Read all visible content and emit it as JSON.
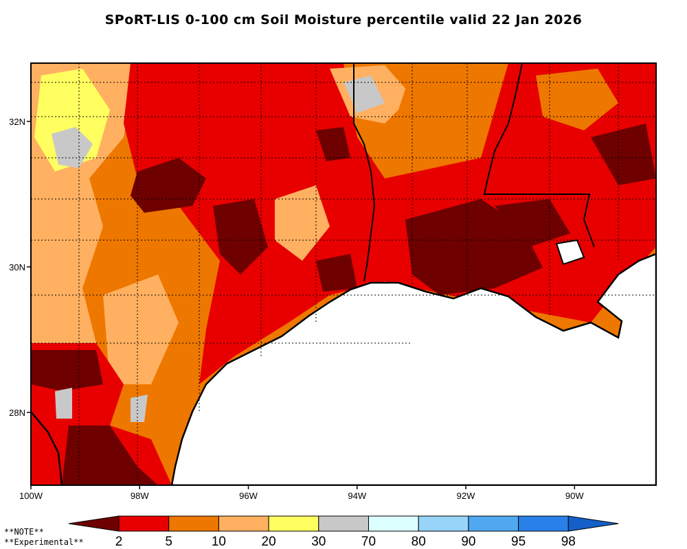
{
  "title": "SPoRT-LIS 0-100 cm Soil Moisture percentile valid 22 Jan 2026",
  "map": {
    "lon_range": [
      -100,
      -88.5
    ],
    "lat_range": [
      27.0,
      32.8
    ],
    "lon_ticks": [
      {
        "value": -100,
        "label": "100W"
      },
      {
        "value": -98,
        "label": "98W"
      },
      {
        "value": -96,
        "label": "96W"
      },
      {
        "value": -94,
        "label": "94W"
      },
      {
        "value": -92,
        "label": "92W"
      },
      {
        "value": -90,
        "label": "90W"
      }
    ],
    "lat_ticks": [
      {
        "value": 32,
        "label": "32N"
      },
      {
        "value": 30,
        "label": "30N"
      },
      {
        "value": 28,
        "label": "28N"
      }
    ]
  },
  "colorbar": {
    "labels": [
      "2",
      "5",
      "10",
      "20",
      "30",
      "70",
      "80",
      "90",
      "95",
      "98"
    ],
    "colors": [
      "#6e0000",
      "#e80000",
      "#ee7700",
      "#ffb060",
      "#ffff60",
      "#c8c8c8",
      "#dcffff",
      "#98d4f8",
      "#50a8f0",
      "#2880e8",
      "#1460c8"
    ]
  },
  "notes": [
    "**NOTE**",
    "**Experimental**"
  ]
}
